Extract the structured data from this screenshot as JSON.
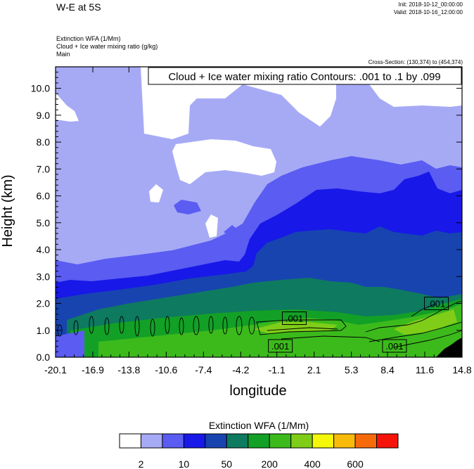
{
  "header": {
    "title": "W-E at 5S",
    "init": "Init: 2018-10-12_00:00:00",
    "valid": "Valid: 2018-10-16_12:00:00",
    "field_line1": "Extinction WFA   (1/Mm)",
    "field_line2": "Cloud + Ice water mixing ratio   (g/kg)",
    "field_line3": "Main",
    "cross_section": "Cross-Section: (130,374) to (454,374)"
  },
  "chart_data": {
    "type": "heatmap",
    "title": "Cloud + Ice water mixing ratio Contours: .001 to .1 by .099",
    "xlabel": "longitude",
    "ylabel": "Height (km)",
    "x_ticks": [
      "-20.1",
      "-16.9",
      "-13.8",
      "-10.6",
      "-7.4",
      "-4.2",
      "-1.1",
      "2.1",
      "5.3",
      "8.4",
      "11.6",
      "14.8"
    ],
    "xlim": [
      -20.1,
      14.8
    ],
    "y_ticks": [
      "0.0",
      "1.0",
      "2.0",
      "3.0",
      "4.0",
      "5.0",
      "6.0",
      "7.0",
      "8.0",
      "9.0",
      "10.0"
    ],
    "ylim": [
      0.0,
      10.8
    ],
    "contour_labels": [
      {
        "text": ".001",
        "x": 0.4,
        "y": 1.45
      },
      {
        "text": ".001",
        "x": -0.8,
        "y": 0.42
      },
      {
        "text": ".001",
        "x": 9.0,
        "y": 0.42
      },
      {
        "text": ".001",
        "x": 12.6,
        "y": 2.0
      }
    ],
    "colorbar": {
      "title": "Extinction WFA  (1/Mm)",
      "colors": [
        "#ffffff",
        "#a6aaf5",
        "#5a5cf2",
        "#1818e8",
        "#1844b0",
        "#0e7a60",
        "#13a026",
        "#3cba1c",
        "#80cd19",
        "#f4f70a",
        "#f8bb0a",
        "#f76a0a",
        "#f6140a"
      ],
      "tick_labels": [
        "2",
        "10",
        "50",
        "200",
        "400",
        "600"
      ]
    }
  }
}
